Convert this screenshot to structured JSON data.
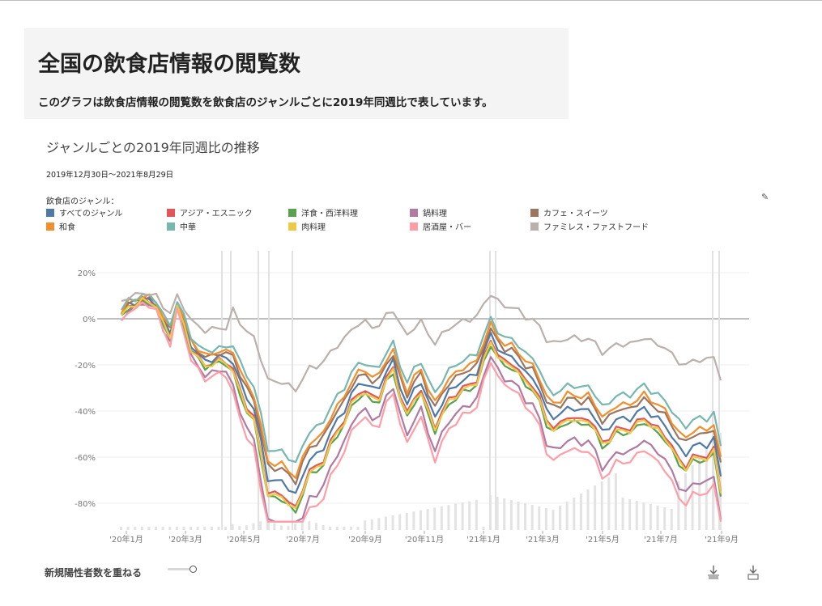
{
  "header": {
    "title": "全国の飲食店情報の閲覧数",
    "description": "このグラフは飲食店情報の閲覧数を飲食店のジャンルごとに2019年同週比で表しています。"
  },
  "chart_title": "ジャンルごとの2019年同週比の推移",
  "date_range": "2019年12月30日～2021年8月29日",
  "legend_title": "飲食店のジャンル：",
  "toggle_label": "新規陽性者数を重ねる",
  "icons": [
    "pen-icon",
    "download-icon",
    "download-image-icon"
  ],
  "chart_data": {
    "type": "line",
    "ylim": [
      -90,
      30
    ],
    "yticks": [
      20,
      0,
      -20,
      -40,
      -60,
      -80
    ],
    "ytick_labels": [
      "20%",
      "0%",
      "-20%",
      "-40%",
      "-60%",
      "-80%"
    ],
    "xtick_labels": [
      "'20年1月",
      "'20年3月",
      "'20年5月",
      "'20年7月",
      "'20年9月",
      "'20年11月",
      "'21年1月",
      "'21年3月",
      "'21年5月",
      "'21年7月",
      "'21年9月"
    ],
    "grid": true,
    "legend_position": "top",
    "series": [
      {
        "name": "すべてのジャンル",
        "color": "#4e79a7"
      },
      {
        "name": "アジア・エスニック",
        "color": "#e15759"
      },
      {
        "name": "洋食・西洋料理",
        "color": "#59a14f"
      },
      {
        "name": "鍋料理",
        "color": "#b07aa1"
      },
      {
        "name": "カフェ・スイーツ",
        "color": "#9c755f"
      },
      {
        "name": "和食",
        "color": "#f28e2b"
      },
      {
        "name": "中華",
        "color": "#76b7b2"
      },
      {
        "name": "肉料理",
        "color": "#edc948"
      },
      {
        "name": "居酒屋・バー",
        "color": "#ff9da7"
      },
      {
        "name": "ファミレス・ファストフード",
        "color": "#bab0ac"
      }
    ]
  }
}
